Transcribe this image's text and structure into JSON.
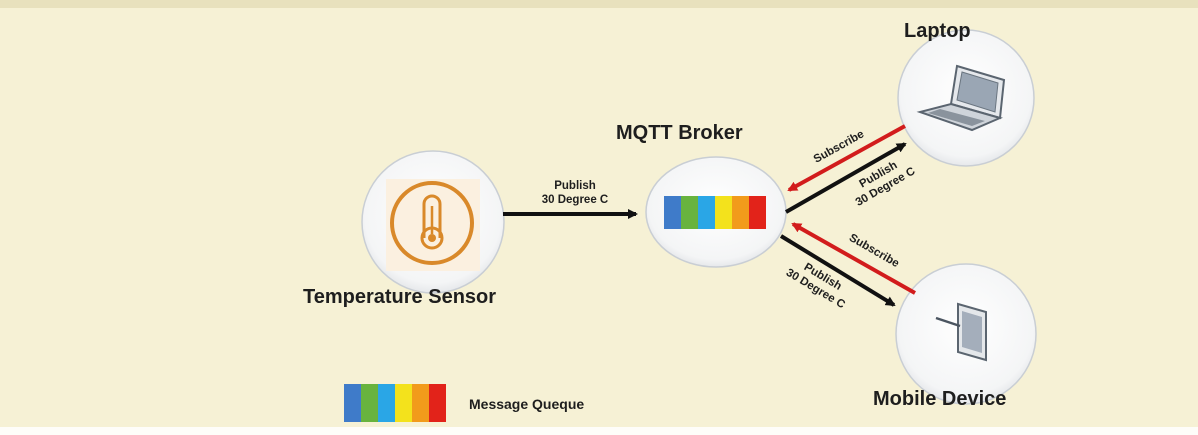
{
  "nodes": {
    "sensor": "Temperature Sensor",
    "broker": "MQTT Broker",
    "laptop": "Laptop",
    "mobile": "Mobile Device"
  },
  "arrows": {
    "publish_line1": "Publish",
    "publish_line2": "30 Degree C",
    "subscribe": "Subscribe"
  },
  "legend": {
    "label": "Message Queque"
  },
  "queue_colors": [
    "#3f7bc9",
    "#68b33e",
    "#2aa6e6",
    "#f3e21c",
    "#f29b1b",
    "#e2231a"
  ],
  "colors": {
    "publish_arrow": "#111111",
    "subscribe_arrow": "#d21c1c",
    "sensor_accent": "#d9892a"
  }
}
